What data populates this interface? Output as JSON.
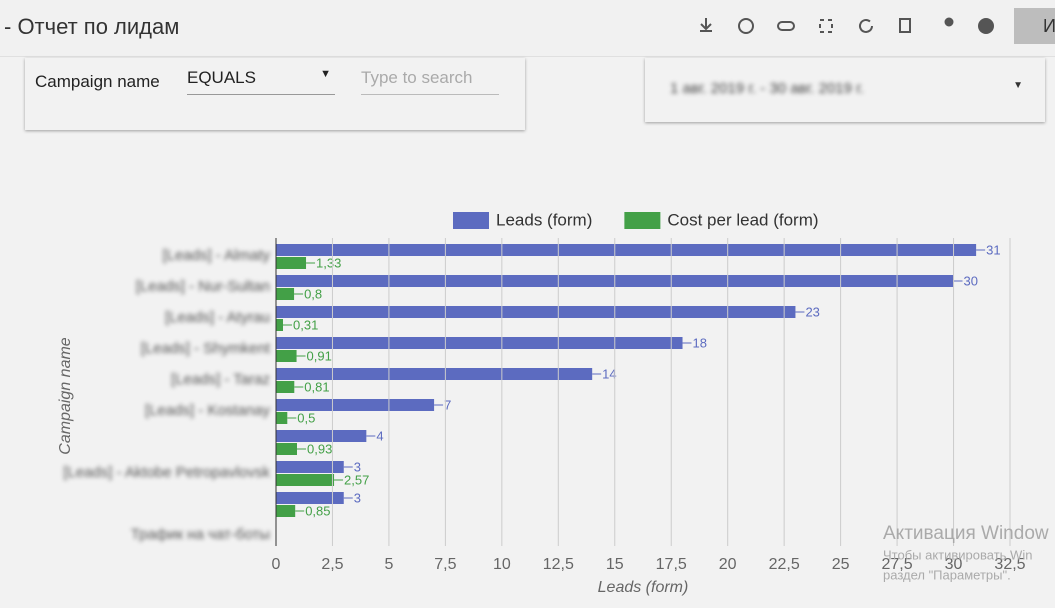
{
  "header": {
    "title": "- Отчет по лидам",
    "edit_label": "И"
  },
  "filters": {
    "field_label": "Campaign name",
    "operator": "EQUALS",
    "search_placeholder": "Type to search",
    "date_range": "1 авг. 2019 г. - 30 авг. 2019 г."
  },
  "watermark": {
    "title": "Активация Window",
    "line1": "Чтобы активировать Win",
    "line2": "раздел \"Параметры\"."
  },
  "chart_data": {
    "type": "bar",
    "orientation": "horizontal",
    "x_label": "Leads (form)",
    "y_label": "Campaign name",
    "categories": [
      "[Leads] - Almaty",
      "[Leads] - Nur-Sultan",
      "[Leads] - Atyrau",
      "[Leads] - Shymkent",
      "[Leads] - Taraz",
      "[Leads] - Kostanay",
      null,
      "[Leads] - Aktobe Petropavlovsk",
      null,
      "Трафик на чат-боты"
    ],
    "series": [
      {
        "name": "Leads (form)",
        "color": "#5c6bc0",
        "values": [
          31,
          30,
          23,
          18,
          14,
          7,
          4,
          3,
          3,
          null
        ]
      },
      {
        "name": "Cost per lead (form)",
        "color": "#43a047",
        "values": [
          1.33,
          0.8,
          0.31,
          0.91,
          0.81,
          0.5,
          0.93,
          2.57,
          0.85,
          null
        ],
        "value_labels": [
          "1,33",
          "0,8",
          "0,31",
          "0,91",
          "0,81",
          "0,5",
          "0,93",
          "2,57",
          "0,85",
          null
        ]
      }
    ],
    "xlim": [
      0,
      32.5
    ],
    "xticks": [
      0,
      {
        "value": 2.5,
        "label": "2,5"
      },
      5,
      {
        "value": 7.5,
        "label": "7,5"
      },
      10,
      {
        "value": 12.5,
        "label": "12,5"
      },
      15,
      {
        "value": 17.5,
        "label": "17,5"
      },
      20,
      {
        "value": 22.5,
        "label": "22,5"
      },
      25,
      {
        "value": 27.5,
        "label": "27,5"
      },
      30,
      {
        "value": 32.5,
        "label": "32,5"
      }
    ],
    "grid": true,
    "legend": "top"
  }
}
